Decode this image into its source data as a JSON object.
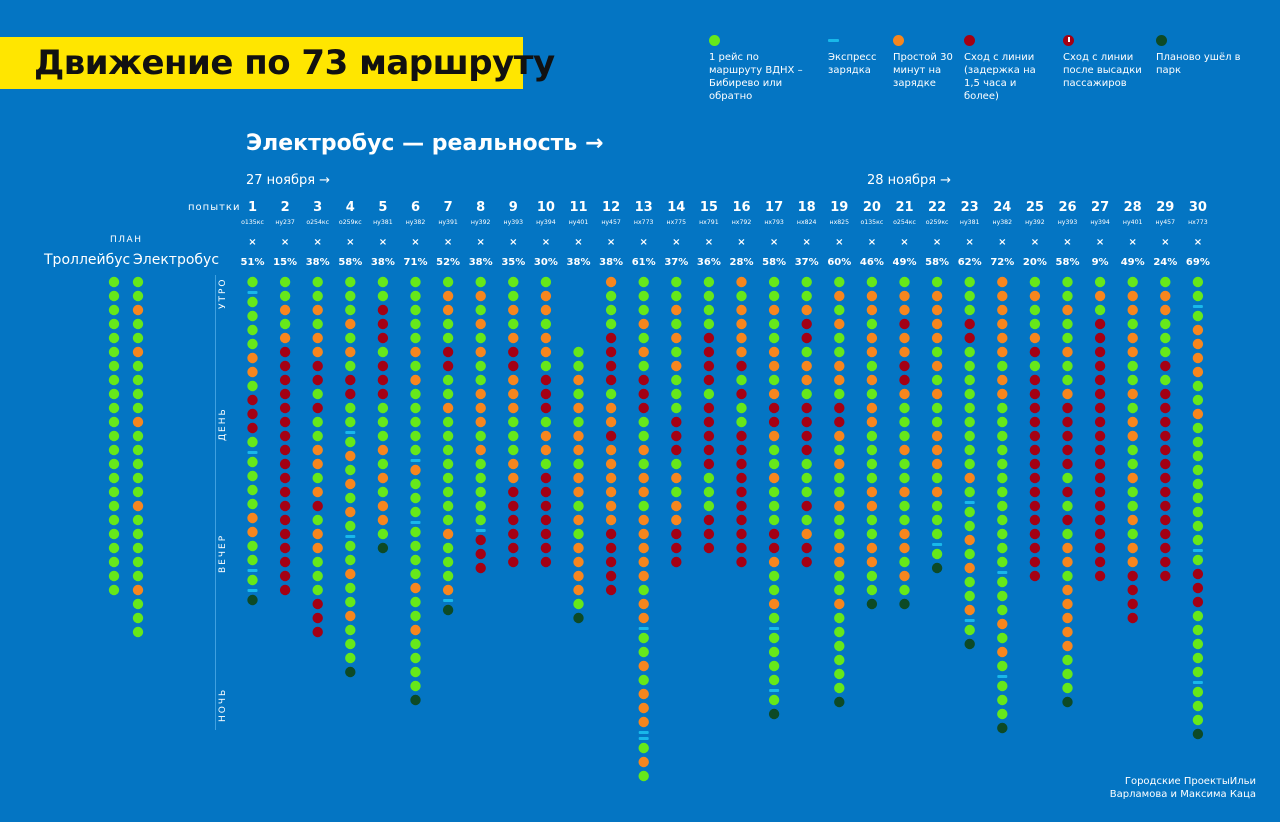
{
  "title": "Движение по 73 маршруту",
  "subtitle": "Электробус — реальность →",
  "legend": [
    {
      "kind": "trip",
      "text": "1 рейс по маршруту ВДНХ – Бибирево или обратно"
    },
    {
      "kind": "charge",
      "text": "Экспресс зарядка"
    },
    {
      "kind": "idle",
      "text": "Простой 30 минут на зарядке"
    },
    {
      "kind": "fail",
      "text": "Сход с линии (задержка на 1,5 часа и более)"
    },
    {
      "kind": "fail_drop",
      "text": "Сход с линии после высадки пассажиров"
    },
    {
      "kind": "park",
      "text": "Планово ушёл в парк"
    }
  ],
  "colors": {
    "trip": "#66e81a",
    "charge": "#18b8ea",
    "idle": "#f7861e",
    "fail": "#a40014",
    "fail_drop": "#a40014",
    "park": "#0d4a26",
    "accent": "#ffe600",
    "background": "#0475c3",
    "plan_x_fail": "#b8001e",
    "plan_x_idle": "#f7861e"
  },
  "labels": {
    "attempts": "попытки",
    "plan": "ПЛАН",
    "trolleybus": "Троллейбус",
    "electrobus": "Электробус",
    "date1": "27 ноября →",
    "date2": "28 ноября →",
    "period_morning": "УТРО",
    "period_day": "ДЕНЬ",
    "period_evening": "ВЕЧЕР",
    "period_night": "НОЧЬ"
  },
  "credit": [
    "Городские ПроектыИльи",
    "Варламова и Максима Каца"
  ],
  "chart_data": {
    "type": "scatter",
    "plan": {
      "trolleybus": "T23",
      "electrobus": "T2 O T2 O T4 O T5 O T5 O T3"
    },
    "attempts": [
      {
        "n": "1",
        "code": "о135кс",
        "x": "fail",
        "pct": "51%",
        "seq": "T C T T T T O O T F F F T C T T T T O O T T C T C P"
      },
      {
        "n": "2",
        "code": "ну237",
        "x": "fail",
        "pct": "15%",
        "seq": "T T O T O F F F F F F F F F F F F F F F F F F"
      },
      {
        "n": "3",
        "code": "о254кс",
        "x": "fail",
        "pct": "38%",
        "seq": "T T O T O O F F T F T T O O T O F T O O T T T F F F"
      },
      {
        "n": "4",
        "code": "о259кс",
        "x": "fail",
        "pct": "58%",
        "seq": "T T T O T O T F F T T C T O T O T O T C T T O T T O T T T P"
      },
      {
        "n": "5",
        "code": "ну381",
        "x": "fail",
        "pct": "38%",
        "seq": "T T F F F T F F F T T T O T O T O O T P"
      },
      {
        "n": "6",
        "code": "ну382",
        "x": "idle",
        "pct": "71%",
        "seq": "T T T T T O T O T T T T T C O T T T C T T T T O T T O T T T T P"
      },
      {
        "n": "7",
        "code": "ну391",
        "x": "fail",
        "pct": "52%",
        "seq": "T O O T T F F T T O T T T T T T T T O T T T O C P"
      },
      {
        "n": "8",
        "code": "ну392",
        "x": "fail",
        "pct": "38%",
        "seq": "T O T O T O T T O O O T O T T T T T C F F F"
      },
      {
        "n": "9",
        "code": "ну393",
        "x": "fail",
        "pct": "35%",
        "seq": "T T O T O F F O O O T T T O O F F F F F F"
      },
      {
        "n": "10",
        "code": "ну394",
        "x": "fail",
        "pct": "30%",
        "seq": "T O O T O O T F F F T O O T F F F F F F F"
      },
      {
        "n": "11",
        "code": "ну401",
        "x": "idle",
        "pct": "38%",
        "seq": "T T O T O T O O T O O T O T O O O O T P"
      },
      {
        "n": "12",
        "code": "ну457",
        "x": "fail",
        "pct": "38%",
        "seq": "O T T T F F F F T O O F O O O O O O F F F F F"
      },
      {
        "n": "13",
        "code": "нх773",
        "x": "fail",
        "pct": "61%",
        "seq": "T T T O T O T F F F T T O T O O T O O O O O T O O C T T O T O O O C C T O T"
      },
      {
        "n": "14",
        "code": "нх775",
        "x": "fail",
        "pct": "37%",
        "seq": "T T O T O T O T T T F F F T O T O O F F F"
      },
      {
        "n": "15",
        "code": "нх791",
        "x": "fail",
        "pct": "36%",
        "seq": "T T T T F F F F T F F F F F T T T F F F"
      },
      {
        "n": "16",
        "code": "нх792",
        "x": "fail",
        "pct": "28%",
        "seq": "O T O O O O F T F T T F F F F F F F F F F"
      },
      {
        "n": "17",
        "code": "нх793",
        "x": "fail",
        "pct": "58%",
        "seq": "T T O T T O O T O F F O T T O T T T F F O T T O T C T T T T C T P"
      },
      {
        "n": "18",
        "code": "нх824",
        "x": "fail",
        "pct": "37%",
        "seq": "T T O F F T O O T F F F F T T T F T O F F"
      },
      {
        "n": "19",
        "code": "нх825",
        "x": "fail",
        "pct": "60%",
        "seq": "T O T O T T O O T F F O T O T T O T T O O T T O T T T T T T P"
      },
      {
        "n": "20",
        "code": "о135кс",
        "x": "idle",
        "pct": "46%",
        "seq": "T O O T O O T O T O O T T T T O O T T O O T T P"
      },
      {
        "n": "21",
        "code": "о254кс",
        "x": "fail",
        "pct": "49%",
        "seq": "T O O F O O F F O T T T O T T O T T O O T O T P"
      },
      {
        "n": "22",
        "code": "о259кс",
        "x": "idle",
        "pct": "58%",
        "seq": "T O O O O T O T O T T O O O T O T T T C T P"
      },
      {
        "n": "23",
        "code": "ну381",
        "x": "fail",
        "pct": "62%",
        "seq": "T T T F F T T T T T T T T T O T C T T O T O T T O C T P"
      },
      {
        "n": "24",
        "code": "ну382",
        "x": "idle",
        "pct": "72%",
        "seq": "O O O O O O T O O T T T T T T T T T T T T C T T T O T O T C T T T P"
      },
      {
        "n": "25",
        "code": "ну392",
        "x": "fail",
        "pct": "20%",
        "seq": "T O T T O F T F F F F F F F F F F F F F F F"
      },
      {
        "n": "26",
        "code": "ну393",
        "x": "idle",
        "pct": "58%",
        "seq": "T T O T T O T T O F F F F F T F T F T O O T O O O O O T T T P"
      },
      {
        "n": "27",
        "code": "ну394",
        "x": "fail",
        "pct": "9%",
        "seq": "T O T F F F F F F F F F F F F F F F F F F F"
      },
      {
        "n": "28",
        "code": "ну401",
        "x": "fail",
        "pct": "49%",
        "seq": "T O O T O O T T O T O O T T O T T O T O O F F F F"
      },
      {
        "n": "29",
        "code": "ну457",
        "x": "fail",
        "pct": "24%",
        "seq": "T O O T T T F T F F F F F F F F F F F F F F"
      },
      {
        "n": "30",
        "code": "нх773",
        "x": "fail",
        "pct": "69%",
        "seq": "T T C T O O O O T T O T T T T T T T T T C T F F F T T T T T C T T T P"
      }
    ]
  }
}
